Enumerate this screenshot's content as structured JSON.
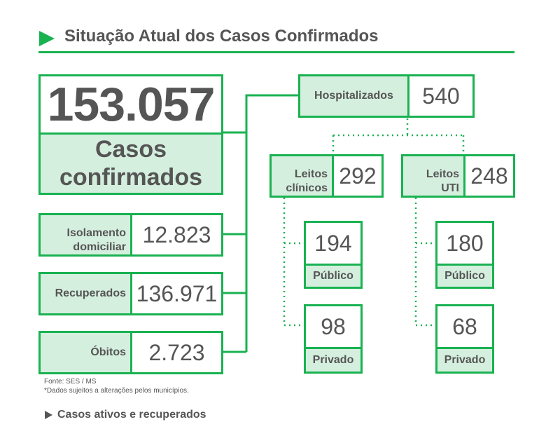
{
  "header": {
    "title": "Situação Atual dos Casos Confirmados"
  },
  "colors": {
    "accent": "#19b251",
    "fill": "#d5efdf",
    "text": "#555555"
  },
  "total": {
    "value": "153.057",
    "label_line1": "Casos",
    "label_line2": "confirmados"
  },
  "left": [
    {
      "label_line1": "Isolamento",
      "label_line2": "domiciliar",
      "value": "12.823"
    },
    {
      "label_line1": "Recuperados",
      "label_line2": "",
      "value": "136.971"
    },
    {
      "label_line1": "Óbitos",
      "label_line2": "",
      "value": "2.723"
    }
  ],
  "hospital": {
    "label": "Hospitalizados",
    "value": "540"
  },
  "clinicos": {
    "label_line1": "Leitos",
    "label_line2": "clínicos",
    "value": "292",
    "publico": {
      "value": "194",
      "label": "Público"
    },
    "privado": {
      "value": "98",
      "label": "Privado"
    }
  },
  "uti": {
    "label_line1": "Leitos",
    "label_line2": "UTI",
    "value": "248",
    "publico": {
      "value": "180",
      "label": "Público"
    },
    "privado": {
      "value": "68",
      "label": "Privado"
    }
  },
  "footer": {
    "source": "Fonte: SES / MS",
    "note": "*Dados sujeitos a alterações pelos municípios.",
    "subtitle": "Casos ativos e recuperados"
  }
}
